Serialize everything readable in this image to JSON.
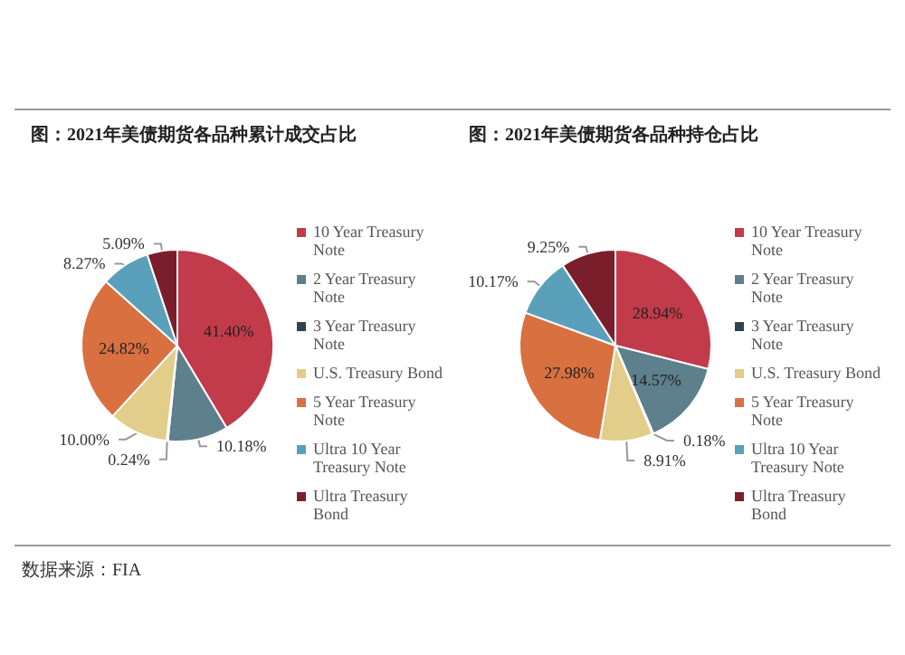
{
  "chart_data": [
    {
      "type": "pie",
      "title": "图：2021年美债期货各品种累计成交占比",
      "categories": [
        "10 Year Treasury Note",
        "2 Year Treasury Note",
        "3 Year Treasury Note",
        "U.S. Treasury Bond",
        "5 Year Treasury Note",
        "Ultra 10 Year Treasury Note",
        "Ultra Treasury Bond"
      ],
      "values": [
        41.4,
        10.18,
        0.24,
        10.0,
        24.82,
        8.27,
        5.09
      ],
      "value_labels": [
        "41.40%",
        "10.18%",
        "0.24%",
        "10.00%",
        "24.82%",
        "8.27%",
        "5.09%"
      ],
      "colors": [
        "#c23b4a",
        "#5e7f8c",
        "#2e4450",
        "#e3cd8a",
        "#d9703f",
        "#5aa0bb",
        "#7b1e2c"
      ],
      "legend": "right",
      "annotations": [
        "数据来源：FIA"
      ]
    },
    {
      "type": "pie",
      "title": "图：2021年美债期货各品种持仓占比",
      "categories": [
        "10 Year Treasury Note",
        "2 Year Treasury Note",
        "3 Year Treasury Note",
        "U.S. Treasury Bond",
        "5 Year Treasury Note",
        "Ultra 10 Year Treasury Note",
        "Ultra Treasury Bond"
      ],
      "values": [
        28.94,
        14.57,
        0.18,
        8.91,
        27.98,
        10.17,
        9.25
      ],
      "value_labels": [
        "28.94%",
        "14.57%",
        "0.18%",
        "8.91%",
        "27.98%",
        "10.17%",
        "9.25%"
      ],
      "colors": [
        "#c23b4a",
        "#5e7f8c",
        "#2e4450",
        "#e3cd8a",
        "#d9703f",
        "#5aa0bb",
        "#7b1e2c"
      ],
      "legend": "right"
    }
  ]
}
